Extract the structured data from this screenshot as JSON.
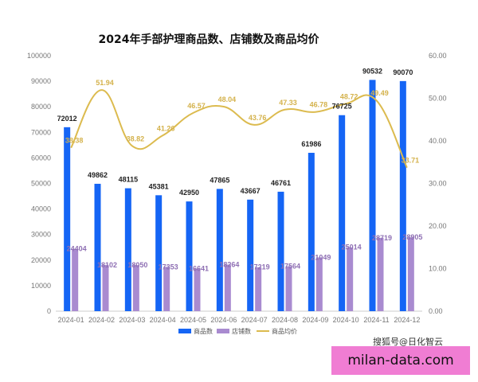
{
  "chart_data": {
    "type": "bar",
    "title": "2024年手部护理商品数、店铺数及商品均价",
    "categories": [
      "2024-01",
      "2024-02",
      "2024-03",
      "2024-04",
      "2024-05",
      "2024-06",
      "2024-07",
      "2024-08",
      "2024-09",
      "2024-10",
      "2024-11",
      "2024-12"
    ],
    "series": [
      {
        "name": "商品数",
        "type": "bar",
        "axis": "left",
        "color": "#1565f5",
        "values": [
          72012,
          49862,
          48115,
          45381,
          42950,
          47865,
          43667,
          46761,
          61986,
          76725,
          90532,
          90070
        ]
      },
      {
        "name": "店铺数",
        "type": "bar",
        "axis": "left",
        "color": "#a98bd0",
        "values": [
          24404,
          18102,
          18050,
          17353,
          16641,
          18264,
          17219,
          17564,
          21049,
          25014,
          28719,
          28905
        ]
      },
      {
        "name": "商品均价",
        "type": "line",
        "axis": "right",
        "color": "#dcbb4f",
        "values": [
          38.38,
          51.94,
          38.82,
          41.26,
          46.57,
          48.04,
          43.76,
          47.33,
          46.78,
          48.72,
          49.49,
          33.71
        ]
      }
    ],
    "left_axis": {
      "min": 0,
      "max": 100000,
      "step": 10000,
      "tick_labels": [
        "0",
        "10000",
        "20000",
        "30000",
        "40000",
        "50000",
        "60000",
        "70000",
        "80000",
        "90000",
        "100000"
      ]
    },
    "right_axis": {
      "min": 0,
      "max": 60,
      "step": 10,
      "tick_labels": [
        "0.00",
        "10.00",
        "20.00",
        "30.00",
        "40.00",
        "50.00",
        "60.00"
      ]
    },
    "grid": false,
    "legend_position": "bottom-center"
  },
  "footer": {
    "watermark": "搜狐号@日化智云",
    "site": "milan-data.com"
  }
}
